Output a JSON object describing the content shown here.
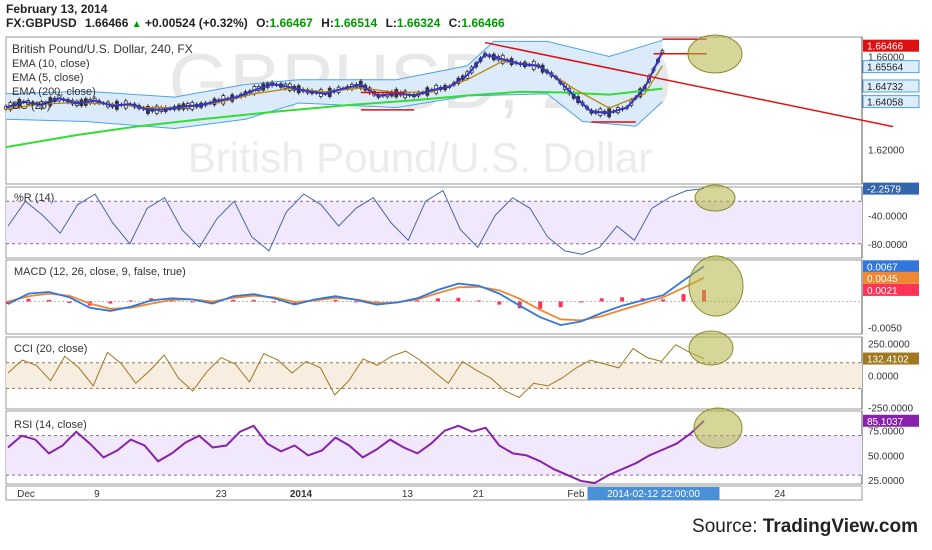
{
  "header": {
    "date": "February 13, 2014",
    "symbol": "FX:GBPUSD",
    "last": "1.66466",
    "change": "+0.00524 (+0.32%)",
    "o_label": "O:",
    "o": "1.66467",
    "h_label": "H:",
    "h": "1.66514",
    "l_label": "L:",
    "l": "1.66324",
    "c_label": "C:",
    "c": "1.66466"
  },
  "source": {
    "label": "Source:",
    "site": "TradingView.com"
  },
  "watermark": {
    "symbol": "GBPUSD, 240",
    "name": "British Pound/U.S. Dollar"
  },
  "colors": {
    "up_bar": "#2a2a2a",
    "ema10": "#b8860b",
    "ema5": "#3333cc",
    "ema200": "#33dd33",
    "donchian": "#4da3e6",
    "trend": "#dd1111",
    "highlight": "#b4b446",
    "wr": "#4466aa",
    "macd": "#3377dd",
    "signal": "#ee8833",
    "hist_pos": "#ff3355",
    "cci": "#a07820",
    "rsi": "#8822aa"
  },
  "chart_data": [
    {
      "panel": "price",
      "type": "line",
      "title": "British Pound/U.S. Dollar, 240, FX",
      "legend": [
        "EMA (10, close)",
        "EMA (5, close)",
        "EMA (200, close)",
        "DC (20)"
      ],
      "ylim": [
        1.6051,
        1.6684
      ],
      "yticks": [
        "1.66000",
        "1.62000"
      ],
      "price_labels": [
        {
          "value": 1.66466,
          "text": "1.66466",
          "color": "#dd1111"
        },
        {
          "value": 1.65564,
          "text": "1.65564",
          "color": "#4da3e6"
        },
        {
          "value": 1.64732,
          "text": "1.64732",
          "color": "#4da3e6"
        },
        {
          "value": 1.64058,
          "text": "1.64058",
          "color": "#4da3e6"
        }
      ],
      "x_labels": [
        "Dec",
        "9",
        "23",
        "2014",
        "13",
        "21",
        "Feb",
        "24"
      ],
      "crosshair_label": "2014-02-12 22:00:00",
      "x_start": "2013-12-01",
      "series": [
        {
          "name": "EMA (200, close)",
          "values": [
            {
              "t": "2013-12-01",
              "v": 1.621
            },
            {
              "t": "2013-12-09",
              "v": 1.6262
            },
            {
              "t": "2013-12-16",
              "v": 1.63
            },
            {
              "t": "2013-12-23",
              "v": 1.633
            },
            {
              "t": "2014-01-01",
              "v": 1.6365
            },
            {
              "t": "2014-01-09",
              "v": 1.6392
            },
            {
              "t": "2014-01-16",
              "v": 1.6412
            },
            {
              "t": "2014-01-22",
              "v": 1.6432
            },
            {
              "t": "2014-01-28",
              "v": 1.6448
            },
            {
              "t": "2014-02-02",
              "v": 1.6445
            },
            {
              "t": "2014-02-07",
              "v": 1.6436
            },
            {
              "t": "2014-02-13",
              "v": 1.6462
            }
          ]
        },
        {
          "name": "EMA (5, close)",
          "values": [
            {
              "t": "2013-12-01",
              "v": 1.638
            },
            {
              "t": "2013-12-03",
              "v": 1.6405
            },
            {
              "t": "2013-12-05",
              "v": 1.6392
            },
            {
              "t": "2013-12-07",
              "v": 1.642
            },
            {
              "t": "2013-12-09",
              "v": 1.6398
            },
            {
              "t": "2013-12-11",
              "v": 1.641
            },
            {
              "t": "2013-12-13",
              "v": 1.6388
            },
            {
              "t": "2013-12-15",
              "v": 1.6395
            },
            {
              "t": "2013-12-17",
              "v": 1.637
            },
            {
              "t": "2013-12-19",
              "v": 1.6372
            },
            {
              "t": "2013-12-21",
              "v": 1.6385
            },
            {
              "t": "2013-12-23",
              "v": 1.639
            },
            {
              "t": "2013-12-25",
              "v": 1.641
            },
            {
              "t": "2013-12-27",
              "v": 1.6425
            },
            {
              "t": "2013-12-29",
              "v": 1.6455
            },
            {
              "t": "2013-12-31",
              "v": 1.6482
            },
            {
              "t": "2014-01-02",
              "v": 1.6468
            },
            {
              "t": "2014-01-04",
              "v": 1.645
            },
            {
              "t": "2014-01-06",
              "v": 1.644
            },
            {
              "t": "2014-01-08",
              "v": 1.6462
            },
            {
              "t": "2014-01-10",
              "v": 1.6478
            },
            {
              "t": "2014-01-12",
              "v": 1.643
            },
            {
              "t": "2014-01-14",
              "v": 1.6442
            },
            {
              "t": "2014-01-16",
              "v": 1.6432
            },
            {
              "t": "2014-01-18",
              "v": 1.6455
            },
            {
              "t": "2014-01-20",
              "v": 1.647
            },
            {
              "t": "2014-01-22",
              "v": 1.652
            },
            {
              "t": "2014-01-24",
              "v": 1.6608
            },
            {
              "t": "2014-01-26",
              "v": 1.6588
            },
            {
              "t": "2014-01-28",
              "v": 1.6568
            },
            {
              "t": "2014-01-30",
              "v": 1.656
            },
            {
              "t": "2014-02-01",
              "v": 1.651
            },
            {
              "t": "2014-02-03",
              "v": 1.6432
            },
            {
              "t": "2014-02-05",
              "v": 1.6362
            },
            {
              "t": "2014-02-07",
              "v": 1.6358
            },
            {
              "t": "2014-02-09",
              "v": 1.638
            },
            {
              "t": "2014-02-11",
              "v": 1.6465
            },
            {
              "t": "2014-02-13",
              "v": 1.662
            }
          ]
        },
        {
          "name": "EMA (10, close)",
          "values": [
            {
              "t": "2013-12-01",
              "v": 1.6375
            },
            {
              "t": "2013-12-05",
              "v": 1.6395
            },
            {
              "t": "2013-12-09",
              "v": 1.6402
            },
            {
              "t": "2013-12-13",
              "v": 1.6395
            },
            {
              "t": "2013-12-17",
              "v": 1.638
            },
            {
              "t": "2013-12-21",
              "v": 1.638
            },
            {
              "t": "2013-12-25",
              "v": 1.6402
            },
            {
              "t": "2013-12-29",
              "v": 1.644
            },
            {
              "t": "2014-01-02",
              "v": 1.6462
            },
            {
              "t": "2014-01-06",
              "v": 1.6448
            },
            {
              "t": "2014-01-10",
              "v": 1.6465
            },
            {
              "t": "2014-01-14",
              "v": 1.6445
            },
            {
              "t": "2014-01-18",
              "v": 1.6448
            },
            {
              "t": "2014-01-22",
              "v": 1.65
            },
            {
              "t": "2014-01-26",
              "v": 1.658
            },
            {
              "t": "2014-01-30",
              "v": 1.6562
            },
            {
              "t": "2014-02-03",
              "v": 1.6462
            },
            {
              "t": "2014-02-07",
              "v": 1.6378
            },
            {
              "t": "2014-02-11",
              "v": 1.644
            },
            {
              "t": "2014-02-13",
              "v": 1.656
            }
          ]
        },
        {
          "name": "DC upper",
          "values": [
            {
              "t": "2013-12-01",
              "v": 1.644
            },
            {
              "t": "2013-12-10",
              "v": 1.645
            },
            {
              "t": "2013-12-20",
              "v": 1.6425
            },
            {
              "t": "2013-12-28",
              "v": 1.648
            },
            {
              "t": "2014-01-03",
              "v": 1.65
            },
            {
              "t": "2014-01-14",
              "v": 1.65
            },
            {
              "t": "2014-01-22",
              "v": 1.656
            },
            {
              "t": "2014-01-25",
              "v": 1.6665
            },
            {
              "t": "2014-01-31",
              "v": 1.6665
            },
            {
              "t": "2014-02-07",
              "v": 1.66
            },
            {
              "t": "2014-02-13",
              "v": 1.667
            }
          ]
        },
        {
          "name": "DC lower",
          "values": [
            {
              "t": "2013-12-01",
              "v": 1.633
            },
            {
              "t": "2013-12-10",
              "v": 1.632
            },
            {
              "t": "2013-12-20",
              "v": 1.629
            },
            {
              "t": "2013-12-28",
              "v": 1.633
            },
            {
              "t": "2014-01-03",
              "v": 1.64
            },
            {
              "t": "2014-01-14",
              "v": 1.638
            },
            {
              "t": "2014-01-22",
              "v": 1.643
            },
            {
              "t": "2014-01-31",
              "v": 1.644
            },
            {
              "t": "2014-02-04",
              "v": 1.632
            },
            {
              "t": "2014-02-10",
              "v": 1.63
            },
            {
              "t": "2014-02-13",
              "v": 1.6406
            }
          ]
        }
      ],
      "trendlines": [
        {
          "t1": "2014-01-24",
          "v1": 1.666,
          "t2": "2014-03-11",
          "v2": 1.6298
        },
        {
          "t1": "2014-01-10",
          "v1": 1.6445,
          "t2": "2014-01-15",
          "v2": 1.6445
        },
        {
          "t1": "2014-01-10",
          "v1": 1.637,
          "t2": "2014-01-16",
          "v2": 1.637
        },
        {
          "t1": "2014-02-05",
          "v1": 1.6318,
          "t2": "2014-02-10",
          "v2": 1.6318
        },
        {
          "t1": "2014-02-13",
          "v1": 1.6675,
          "t2": "2014-02-18",
          "v2": 1.6675
        },
        {
          "t1": "2014-02-12",
          "v1": 1.6612,
          "t2": "2014-02-18",
          "v2": 1.6612
        }
      ]
    },
    {
      "panel": "wr",
      "type": "line",
      "title": "%R (14)",
      "ylim": [
        -100,
        0
      ],
      "yticks": [
        "-40.0000",
        "-80.0000"
      ],
      "bands": [
        -20,
        -80
      ],
      "last_label": "-2.2579",
      "values": [
        -55,
        -20,
        -40,
        -65,
        -25,
        -10,
        -50,
        -80,
        -30,
        -15,
        -60,
        -85,
        -45,
        -20,
        -70,
        -90,
        -35,
        -10,
        -25,
        -55,
        -30,
        -15,
        -50,
        -75,
        -20,
        -5,
        -60,
        -85,
        -40,
        -15,
        -30,
        -70,
        -90,
        -95,
        -85,
        -55,
        -75,
        -30,
        -15,
        -5,
        -2.3
      ]
    },
    {
      "panel": "macd",
      "type": "line",
      "title": "MACD (12, 26, close, 9, false, true)",
      "ylim": [
        -0.0062,
        0.0079
      ],
      "yticks": [
        "-0.0050"
      ],
      "last_labels": [
        "0.0067",
        "0.0045",
        "0.0021"
      ],
      "macd": [
        -0.0005,
        0.0015,
        0.0018,
        0.0008,
        -0.0012,
        -0.0018,
        -0.001,
        0.0002,
        0.0006,
        0.0004,
        -0.0004,
        0.001,
        0.0014,
        0.0006,
        -0.0006,
        0.0004,
        0.001,
        0.0003,
        -0.0006,
        -0.0002,
        0.0006,
        0.0022,
        0.0034,
        0.003,
        0.0015,
        -0.0008,
        -0.003,
        -0.0045,
        -0.0038,
        -0.0022,
        -0.0008,
        0.0002,
        0.0012,
        0.004,
        0.0067
      ],
      "signal": [
        0.0,
        0.001,
        0.0015,
        0.0011,
        -0.0004,
        -0.0014,
        -0.0012,
        -0.0004,
        0.0003,
        0.0004,
        0.0,
        0.0007,
        0.0011,
        0.0008,
        -0.0001,
        0.0002,
        0.0007,
        0.0004,
        -0.0003,
        -0.0002,
        0.0004,
        0.0016,
        0.0027,
        0.0028,
        0.0021,
        0.0005,
        -0.0016,
        -0.0034,
        -0.0036,
        -0.0028,
        -0.0016,
        -0.0004,
        0.0008,
        0.0026,
        0.0045
      ]
    },
    {
      "panel": "cci",
      "type": "line",
      "title": "CCI (20, close)",
      "ylim": [
        -260,
        300
      ],
      "yticks": [
        "250.0000",
        "0.0000",
        "-250.0000"
      ],
      "bands": [
        100,
        -100
      ],
      "last_label": "132.4102",
      "values": [
        20,
        120,
        80,
        -40,
        150,
        60,
        -80,
        180,
        90,
        -60,
        40,
        160,
        -20,
        -120,
        30,
        140,
        90,
        -50,
        170,
        120,
        20,
        110,
        60,
        -150,
        -40,
        130,
        80,
        150,
        190,
        120,
        30,
        -60,
        110,
        40,
        -20,
        -120,
        -170,
        -60,
        -80,
        -20,
        60,
        120,
        90,
        60,
        210,
        140,
        110,
        240,
        180,
        132
      ]
    },
    {
      "panel": "rsi",
      "type": "line",
      "title": "RSI (14, close)",
      "ylim": [
        21,
        95
      ],
      "yticks": [
        "75.0000",
        "50.0000",
        "25.0000"
      ],
      "bands": [
        70,
        30
      ],
      "last_label": "85.1037",
      "values": [
        58,
        70,
        66,
        52,
        60,
        74,
        62,
        48,
        55,
        66,
        60,
        44,
        52,
        63,
        70,
        58,
        60,
        74,
        80,
        62,
        54,
        60,
        50,
        55,
        68,
        60,
        48,
        56,
        66,
        58,
        52,
        62,
        75,
        80,
        74,
        78,
        60,
        52,
        50,
        44,
        36,
        30,
        24,
        22,
        30,
        36,
        42,
        50,
        56,
        62,
        72,
        85
      ]
    }
  ]
}
